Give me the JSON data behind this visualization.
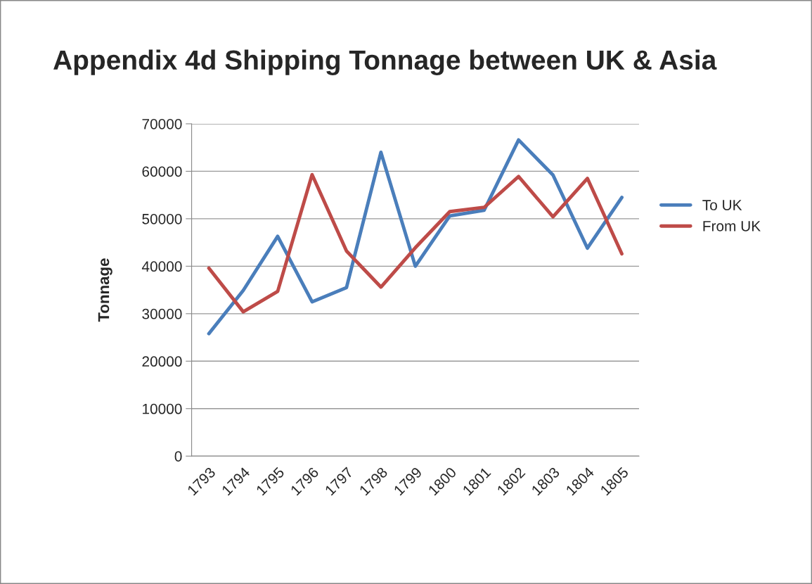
{
  "chart_data": {
    "type": "line",
    "title": "Appendix 4d Shipping Tonnage between UK & Asia",
    "ylabel": "Tonnage",
    "categories": [
      "1793",
      "1794",
      "1795",
      "1796",
      "1797",
      "1798",
      "1799",
      "1800",
      "1801",
      "1802",
      "1803",
      "1804",
      "1805"
    ],
    "series": [
      {
        "name": "To UK",
        "color": "#4a7ebb",
        "values": [
          25800,
          34900,
          46300,
          32500,
          35500,
          64000,
          40000,
          50600,
          51800,
          66600,
          59200,
          43800,
          54500
        ]
      },
      {
        "name": "From UK",
        "color": "#be4b48",
        "values": [
          39600,
          30400,
          34700,
          59300,
          43200,
          35600,
          43900,
          51500,
          52400,
          58900,
          50400,
          58500,
          42600
        ]
      }
    ],
    "ylim": [
      0,
      70000
    ],
    "yticks": [
      0,
      10000,
      20000,
      30000,
      40000,
      50000,
      60000,
      70000
    ],
    "grid": "y",
    "legend": "right",
    "marker": "none",
    "line_style": "solid"
  }
}
